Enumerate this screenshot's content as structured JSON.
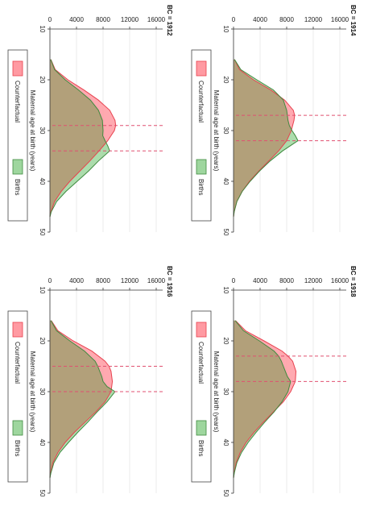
{
  "chart_data": [
    {
      "type": "area",
      "title": "BC = 1912",
      "xlabel": "Maternal age at birth (years)",
      "ylabel": "",
      "xlim": [
        10,
        50
      ],
      "ylim": [
        0,
        16000
      ],
      "xticks": [
        "10",
        "20",
        "30",
        "40",
        "50"
      ],
      "yticks": [
        "0",
        "4000",
        "8000",
        "12000",
        "16000"
      ],
      "legend": [
        "Counterfactual",
        "Births"
      ],
      "legend_position": "bottom",
      "grid": true,
      "vlines": [
        29,
        34
      ],
      "series": [
        {
          "name": "Counterfactual",
          "x": [
            16,
            18,
            20,
            22,
            24,
            26,
            28,
            29,
            30,
            32,
            34,
            36,
            38,
            40,
            42,
            44,
            46,
            47
          ],
          "values": [
            150,
            800,
            2700,
            5100,
            7300,
            9000,
            9800,
            9900,
            9700,
            8700,
            7400,
            6000,
            4500,
            3000,
            1700,
            700,
            150,
            0
          ]
        },
        {
          "name": "Births",
          "x": [
            16,
            18,
            20,
            22,
            24,
            26,
            28,
            30,
            31,
            32,
            33,
            34,
            36,
            38,
            40,
            42,
            44,
            46,
            47
          ],
          "values": [
            120,
            700,
            2300,
            4300,
            6100,
            7300,
            7900,
            8000,
            7950,
            8300,
            8700,
            9000,
            7300,
            5800,
            4100,
            2400,
            1000,
            200,
            0
          ]
        }
      ]
    },
    {
      "type": "area",
      "title": "BC = 1914",
      "xlabel": "Maternal age at birth (years)",
      "ylabel": "",
      "xlim": [
        10,
        50
      ],
      "ylim": [
        0,
        16000
      ],
      "xticks": [
        "10",
        "20",
        "30",
        "40",
        "50"
      ],
      "yticks": [
        "0",
        "4000",
        "8000",
        "12000",
        "16000"
      ],
      "legend": [
        "Counterfactual",
        "Births"
      ],
      "legend_position": "bottom",
      "grid": true,
      "vlines": [
        27,
        32
      ],
      "series": [
        {
          "name": "Counterfactual",
          "x": [
            16,
            18,
            20,
            22,
            24,
            26,
            27,
            28,
            30,
            32,
            34,
            36,
            38,
            40,
            42,
            44,
            46,
            47
          ],
          "values": [
            150,
            900,
            3000,
            5600,
            7700,
            9000,
            9200,
            9100,
            8700,
            8000,
            6800,
            5300,
            3800,
            2400,
            1300,
            500,
            100,
            0
          ]
        },
        {
          "name": "Births",
          "x": [
            16,
            18,
            20,
            22,
            24,
            26,
            27,
            28,
            29,
            30,
            31,
            32,
            34,
            36,
            38,
            40,
            42,
            44,
            46,
            47
          ],
          "values": [
            150,
            1100,
            3500,
            6000,
            7500,
            8000,
            8100,
            8200,
            8400,
            8800,
            9300,
            9700,
            7400,
            5500,
            3900,
            2500,
            1300,
            500,
            100,
            0
          ]
        }
      ]
    },
    {
      "type": "area",
      "title": "BC = 1916",
      "xlabel": "Maternal age at birth (years)",
      "ylabel": "",
      "xlim": [
        10,
        50
      ],
      "ylim": [
        0,
        16000
      ],
      "xticks": [
        "10",
        "20",
        "30",
        "40",
        "50"
      ],
      "yticks": [
        "0",
        "4000",
        "8000",
        "12000",
        "16000"
      ],
      "legend": [
        "Counterfactual",
        "Births"
      ],
      "legend_position": "bottom",
      "grid": true,
      "vlines": [
        25,
        30
      ],
      "series": [
        {
          "name": "Counterfactual",
          "x": [
            16,
            18,
            20,
            22,
            24,
            25,
            26,
            28,
            30,
            32,
            34,
            36,
            38,
            40,
            42,
            44,
            46,
            47
          ],
          "values": [
            200,
            1200,
            3500,
            6300,
            8300,
            8900,
            9200,
            9400,
            9200,
            8300,
            6900,
            5300,
            3700,
            2300,
            1200,
            450,
            100,
            0
          ]
        },
        {
          "name": "Births",
          "x": [
            16,
            18,
            20,
            22,
            24,
            25,
            26,
            27,
            28,
            29,
            30,
            32,
            34,
            36,
            38,
            40,
            42,
            44,
            46,
            47
          ],
          "values": [
            150,
            1000,
            3000,
            5200,
            6800,
            7200,
            7500,
            7800,
            8000,
            8600,
            9800,
            8600,
            7100,
            5700,
            4200,
            2800,
            1500,
            600,
            150,
            0
          ]
        }
      ]
    },
    {
      "type": "area",
      "title": "BC = 1918",
      "xlabel": "Maternal age at birth (years)",
      "ylabel": "",
      "xlim": [
        10,
        50
      ],
      "ylim": [
        0,
        16000
      ],
      "xticks": [
        "10",
        "20",
        "30",
        "40",
        "50"
      ],
      "yticks": [
        "0",
        "4000",
        "8000",
        "12000",
        "16000"
      ],
      "legend": [
        "Counterfactual",
        "Births"
      ],
      "legend_position": "bottom",
      "grid": true,
      "vlines": [
        23,
        28
      ],
      "series": [
        {
          "name": "Counterfactual",
          "x": [
            16,
            18,
            20,
            22,
            23,
            24,
            26,
            28,
            30,
            32,
            34,
            36,
            38,
            40,
            42,
            44,
            46,
            47
          ],
          "values": [
            300,
            1800,
            4600,
            7300,
            8200,
            8900,
            9400,
            9300,
            8600,
            7500,
            6000,
            4500,
            3100,
            1900,
            1000,
            400,
            100,
            0
          ]
        },
        {
          "name": "Births",
          "x": [
            16,
            18,
            20,
            22,
            23,
            24,
            25,
            26,
            27,
            28,
            30,
            32,
            34,
            36,
            38,
            40,
            42,
            44,
            46,
            47
          ],
          "values": [
            250,
            1500,
            3900,
            6100,
            6800,
            7200,
            7500,
            7800,
            8100,
            8600,
            8200,
            7300,
            6100,
            4700,
            3400,
            2200,
            1200,
            500,
            120,
            0
          ]
        }
      ]
    }
  ],
  "colors": {
    "counterfactual_line": "#e8424f",
    "counterfactual_fill": "#ff9aa2",
    "births_line": "#3f8a3f",
    "births_fill": "#9ed69e",
    "overlap_fill": "#b2a07a",
    "vline": "#e05070",
    "grid": "#e6e6e6"
  }
}
